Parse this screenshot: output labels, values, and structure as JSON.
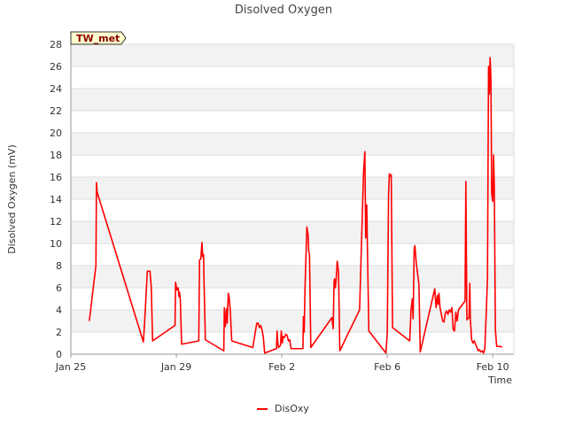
{
  "chart_data": {
    "type": "line",
    "title": "Disolved Oxygen",
    "xlabel": "Time",
    "ylabel": "Disolved Oxygen (mV)",
    "site_label": "TW_met",
    "ylim": [
      0,
      28
    ],
    "yticks": [
      0,
      2,
      4,
      6,
      8,
      10,
      12,
      14,
      16,
      18,
      20,
      22,
      24,
      26,
      28
    ],
    "xlim": [
      0,
      16.8
    ],
    "xticks": [
      {
        "label": "Jan 25",
        "x": 0
      },
      {
        "label": "Jan 29",
        "x": 4
      },
      {
        "label": "Feb 2",
        "x": 8
      },
      {
        "label": "Feb 6",
        "x": 12
      },
      {
        "label": "Feb 10",
        "x": 16
      }
    ],
    "grid": true,
    "legend_position": "bottom-center",
    "colors": {
      "series": "#ff0000",
      "band": "#f2f2f2",
      "grid": "#dddddd",
      "badge_fill": "#ffffcc"
    },
    "series": [
      {
        "name": "DisOxy",
        "points": [
          [
            0.7,
            3.0
          ],
          [
            0.95,
            8.0
          ],
          [
            0.97,
            15.5
          ],
          [
            1.0,
            14.6
          ],
          [
            2.75,
            1.1
          ],
          [
            2.8,
            3.0
          ],
          [
            2.9,
            7.5
          ],
          [
            3.0,
            7.5
          ],
          [
            3.05,
            6.0
          ],
          [
            3.1,
            1.2
          ],
          [
            3.95,
            2.6
          ],
          [
            3.97,
            6.5
          ],
          [
            4.02,
            5.8
          ],
          [
            4.07,
            6.0
          ],
          [
            4.1,
            5.2
          ],
          [
            4.12,
            5.6
          ],
          [
            4.15,
            5.0
          ],
          [
            4.2,
            0.9
          ],
          [
            4.85,
            1.2
          ],
          [
            4.88,
            8.5
          ],
          [
            4.93,
            8.6
          ],
          [
            4.97,
            10.1
          ],
          [
            5.0,
            8.8
          ],
          [
            5.03,
            9.0
          ],
          [
            5.06,
            5.5
          ],
          [
            5.1,
            1.3
          ],
          [
            5.8,
            0.3
          ],
          [
            5.82,
            4.2
          ],
          [
            5.86,
            2.5
          ],
          [
            5.9,
            4.1
          ],
          [
            5.93,
            2.8
          ],
          [
            5.97,
            5.5
          ],
          [
            6.0,
            5.2
          ],
          [
            6.05,
            3.8
          ],
          [
            6.1,
            1.2
          ],
          [
            6.9,
            0.6
          ],
          [
            7.05,
            2.8
          ],
          [
            7.1,
            2.8
          ],
          [
            7.15,
            2.4
          ],
          [
            7.2,
            2.6
          ],
          [
            7.25,
            2.2
          ],
          [
            7.3,
            1.5
          ],
          [
            7.35,
            0.1
          ],
          [
            7.8,
            0.5
          ],
          [
            7.82,
            2.1
          ],
          [
            7.85,
            1.0
          ],
          [
            7.88,
            0.6
          ],
          [
            7.95,
            0.8
          ],
          [
            7.98,
            2.1
          ],
          [
            8.02,
            1.0
          ],
          [
            8.05,
            1.6
          ],
          [
            8.1,
            1.5
          ],
          [
            8.15,
            1.8
          ],
          [
            8.2,
            1.7
          ],
          [
            8.25,
            1.2
          ],
          [
            8.3,
            1.3
          ],
          [
            8.35,
            0.5
          ],
          [
            8.8,
            0.5
          ],
          [
            8.82,
            3.4
          ],
          [
            8.85,
            2.0
          ],
          [
            8.88,
            6.0
          ],
          [
            8.95,
            11.5
          ],
          [
            9.0,
            10.7
          ],
          [
            9.02,
            9.3
          ],
          [
            9.05,
            9.0
          ],
          [
            9.1,
            0.6
          ],
          [
            9.9,
            3.3
          ],
          [
            9.95,
            2.3
          ],
          [
            9.98,
            6.5
          ],
          [
            10.0,
            6.8
          ],
          [
            10.03,
            6.0
          ],
          [
            10.06,
            6.7
          ],
          [
            10.1,
            8.4
          ],
          [
            10.15,
            7.5
          ],
          [
            10.2,
            0.3
          ],
          [
            10.95,
            4.0
          ],
          [
            11.1,
            16.5
          ],
          [
            11.15,
            18.3
          ],
          [
            11.18,
            10.5
          ],
          [
            11.22,
            13.5
          ],
          [
            11.3,
            2.1
          ],
          [
            11.95,
            0.1
          ],
          [
            12.0,
            2.0
          ],
          [
            12.05,
            14.5
          ],
          [
            12.08,
            16.3
          ],
          [
            12.12,
            16.1
          ],
          [
            12.15,
            16.2
          ],
          [
            12.2,
            2.4
          ],
          [
            12.85,
            1.2
          ],
          [
            12.9,
            4.0
          ],
          [
            12.95,
            5.0
          ],
          [
            12.98,
            3.2
          ],
          [
            13.02,
            9.5
          ],
          [
            13.05,
            9.8
          ],
          [
            13.1,
            8.2
          ],
          [
            13.2,
            6.3
          ],
          [
            13.25,
            0.2
          ],
          [
            13.8,
            5.9
          ],
          [
            13.85,
            4.2
          ],
          [
            13.9,
            5.3
          ],
          [
            13.93,
            4.5
          ],
          [
            13.96,
            5.5
          ],
          [
            14.0,
            4.2
          ],
          [
            14.1,
            3.0
          ],
          [
            14.15,
            2.9
          ],
          [
            14.2,
            3.7
          ],
          [
            14.25,
            3.9
          ],
          [
            14.3,
            3.6
          ],
          [
            14.35,
            4.0
          ],
          [
            14.4,
            3.8
          ],
          [
            14.45,
            4.2
          ],
          [
            14.5,
            2.2
          ],
          [
            14.55,
            2.1
          ],
          [
            14.6,
            3.8
          ],
          [
            14.65,
            3.0
          ],
          [
            14.7,
            4.0
          ],
          [
            14.95,
            4.8
          ],
          [
            14.98,
            15.6
          ],
          [
            15.02,
            3.1
          ],
          [
            15.05,
            3.2
          ],
          [
            15.1,
            3.3
          ],
          [
            15.13,
            6.4
          ],
          [
            15.15,
            3.2
          ],
          [
            15.2,
            1.3
          ],
          [
            15.25,
            1.0
          ],
          [
            15.3,
            1.2
          ],
          [
            15.35,
            0.9
          ],
          [
            15.4,
            0.6
          ],
          [
            15.45,
            0.3
          ],
          [
            15.5,
            0.4
          ],
          [
            15.55,
            0.2
          ],
          [
            15.6,
            0.3
          ],
          [
            15.65,
            0.1
          ],
          [
            15.7,
            0.5
          ],
          [
            15.75,
            3.5
          ],
          [
            15.8,
            6.8
          ],
          [
            15.84,
            26.0
          ],
          [
            15.87,
            23.5
          ],
          [
            15.9,
            26.8
          ],
          [
            15.93,
            25.0
          ],
          [
            15.96,
            14.5
          ],
          [
            16.0,
            13.8
          ],
          [
            16.03,
            18.0
          ],
          [
            16.06,
            15.0
          ],
          [
            16.1,
            2.2
          ],
          [
            16.15,
            0.7
          ],
          [
            16.3,
            0.7
          ],
          [
            16.35,
            0.6
          ]
        ]
      }
    ]
  }
}
